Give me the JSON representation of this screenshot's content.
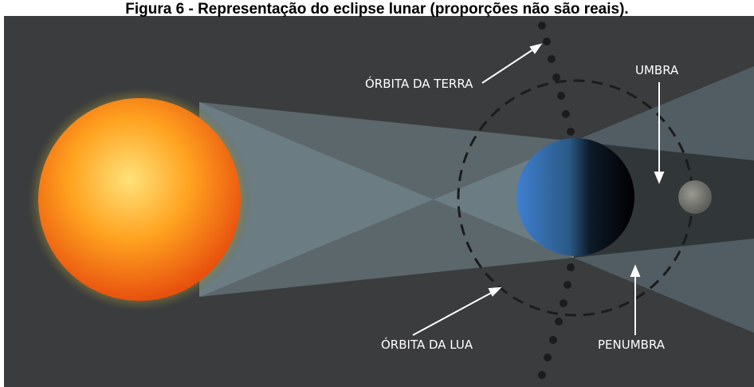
{
  "title": "Figura 6 - Representação do eclipse lunar (proporções não são reais).",
  "labels": {
    "earth_orbit": "ÓRBITA DA TERRA",
    "umbra": "UMBRA",
    "moon_orbit": "ÓRBITA DA LUA",
    "penumbra": "PENUMBRA"
  }
}
